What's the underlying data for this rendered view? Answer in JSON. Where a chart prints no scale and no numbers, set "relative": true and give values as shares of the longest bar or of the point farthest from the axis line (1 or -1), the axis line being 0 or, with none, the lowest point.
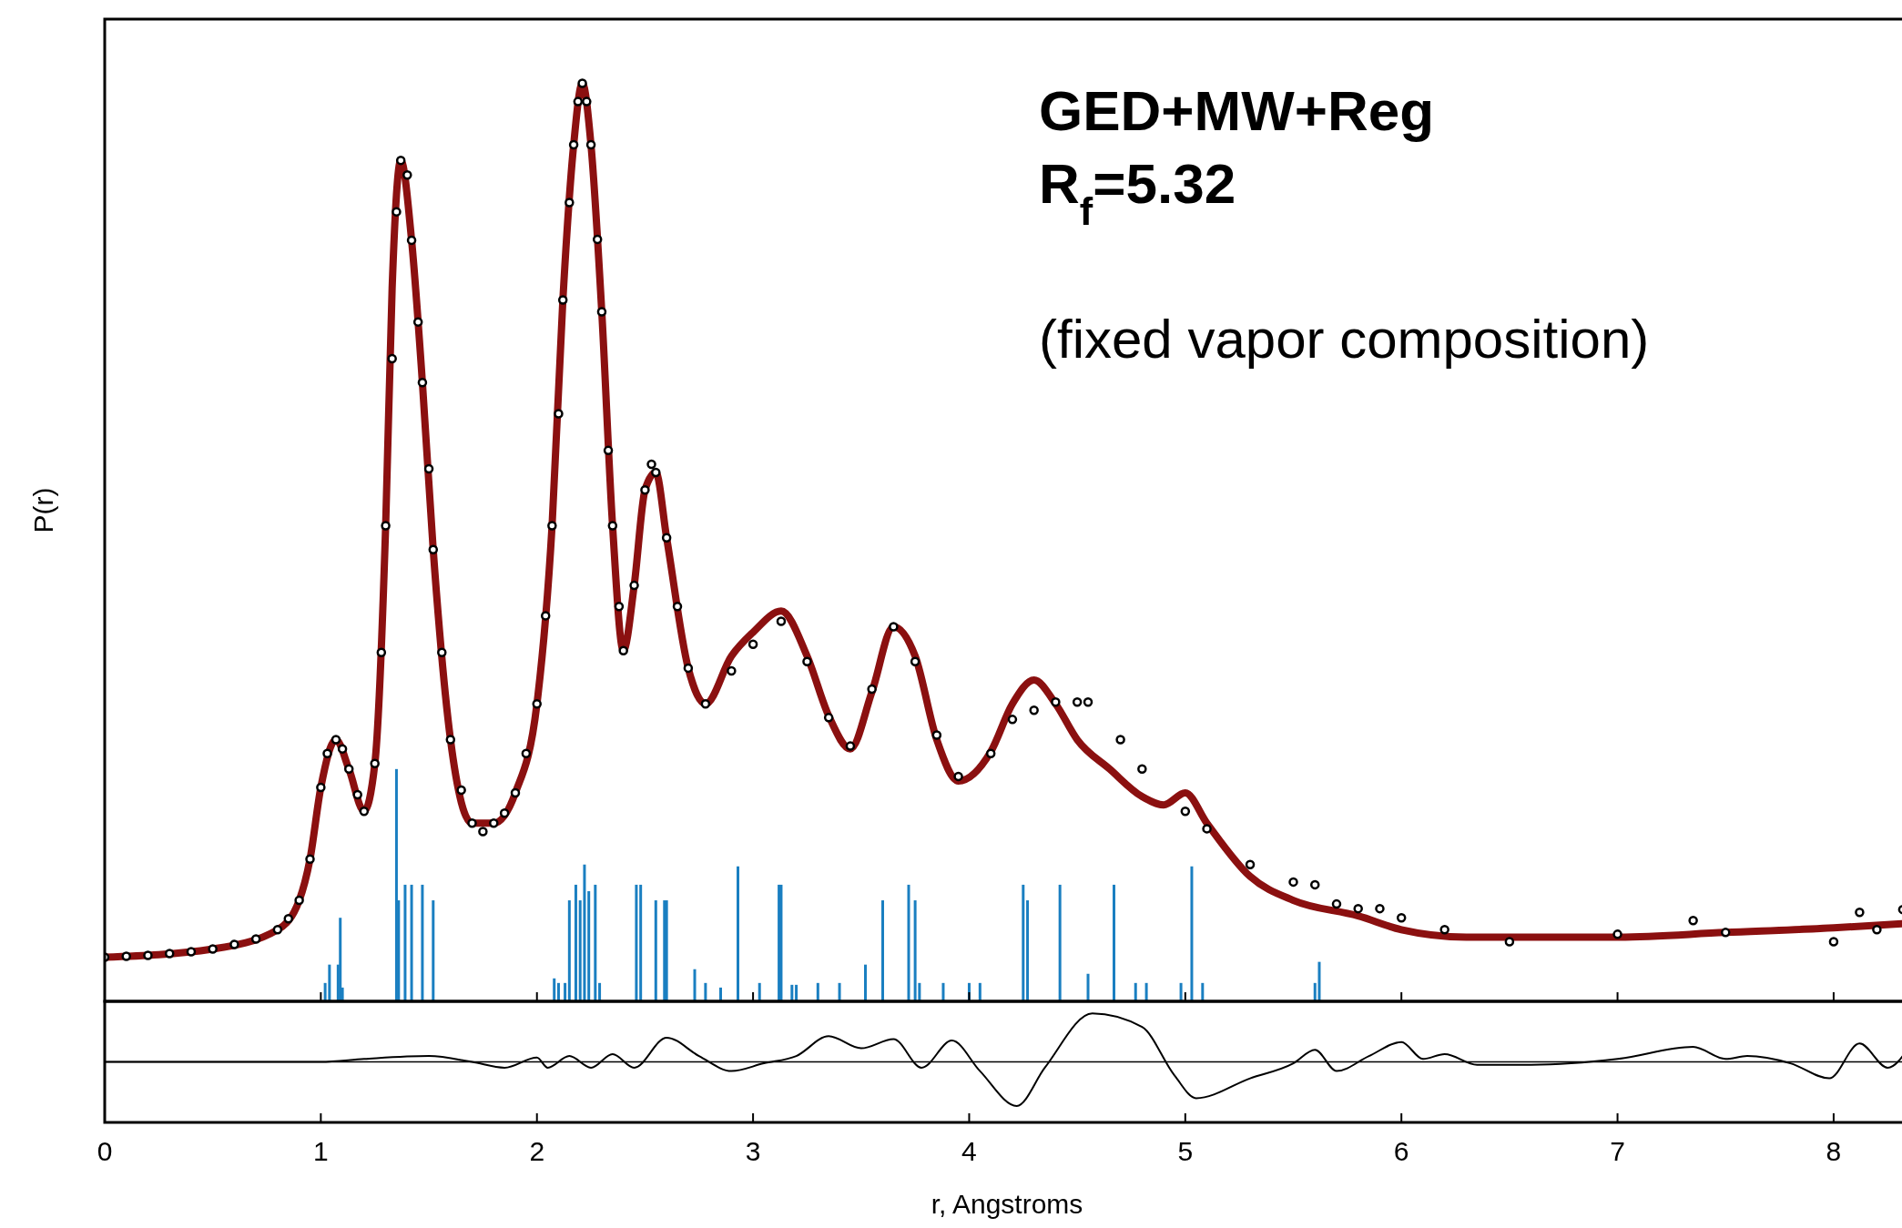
{
  "chart_data": [
    {
      "type": "line",
      "relative": true,
      "ylabel": "P(r)",
      "xlim": [
        0,
        8.35
      ],
      "xticks": [
        0,
        1,
        2,
        3,
        4,
        5,
        6,
        7,
        8
      ],
      "tick_labels": false,
      "annotations": [
        "GED+MW+Reg",
        "R$_{f}$=5.32",
        "(fixed vapor composition)"
      ],
      "series": [
        {
          "type": "bar",
          "color": "#1a7fc1",
          "x": [
            1.02,
            1.04,
            1.08,
            1.09,
            1.1,
            1.35,
            1.36,
            1.39,
            1.42,
            1.47,
            1.52,
            2.08,
            2.1,
            2.13,
            2.15,
            2.18,
            2.2,
            2.22,
            2.24,
            2.27,
            2.29,
            2.46,
            2.48,
            2.55,
            2.59,
            2.6,
            2.73,
            2.78,
            2.85,
            2.93,
            3.03,
            3.12,
            3.13,
            3.18,
            3.2,
            3.3,
            3.4,
            3.52,
            3.6,
            3.72,
            3.75,
            3.77,
            3.88,
            4.0,
            4.05,
            4.25,
            4.27,
            4.42,
            4.55,
            4.67,
            4.77,
            4.82,
            4.98,
            5.03,
            5.08,
            5.6,
            5.62
          ],
          "values": [
            0.02,
            0.04,
            0.04,
            0.091,
            0.015,
            0.253,
            0.11,
            0.127,
            0.127,
            0.127,
            0.11,
            0.025,
            0.02,
            0.02,
            0.11,
            0.127,
            0.11,
            0.149,
            0.12,
            0.127,
            0.02,
            0.127,
            0.127,
            0.11,
            0.11,
            0.11,
            0.035,
            0.02,
            0.015,
            0.147,
            0.02,
            0.127,
            0.127,
            0.018,
            0.018,
            0.02,
            0.02,
            0.04,
            0.11,
            0.127,
            0.11,
            0.02,
            0.02,
            0.02,
            0.02,
            0.127,
            0.11,
            0.127,
            0.03,
            0.127,
            0.02,
            0.02,
            0.02,
            0.147,
            0.02,
            0.02,
            0.043
          ]
        },
        {
          "color": "#8b1010",
          "x": [
            0,
            0.5,
            0.8,
            0.9,
            0.95,
            1.0,
            1.07,
            1.13,
            1.2,
            1.25,
            1.3,
            1.33,
            1.37,
            1.42,
            1.47,
            1.52,
            1.6,
            1.7,
            1.8,
            1.9,
            2.0,
            2.07,
            2.12,
            2.17,
            2.21,
            2.25,
            2.3,
            2.35,
            2.4,
            2.45,
            2.5,
            2.55,
            2.6,
            2.7,
            2.78,
            2.9,
            3.0,
            3.13,
            3.25,
            3.35,
            3.45,
            3.55,
            3.65,
            3.75,
            3.85,
            3.95,
            4.1,
            4.2,
            4.3,
            4.4,
            4.5,
            4.65,
            4.8,
            4.9,
            5.0,
            5.1,
            5.3,
            5.5,
            5.8,
            6.0,
            6.3,
            7.0,
            7.5,
            8.0,
            8.35
          ],
          "values": [
            0.048,
            0.057,
            0.078,
            0.11,
            0.155,
            0.233,
            0.285,
            0.253,
            0.207,
            0.259,
            0.518,
            0.777,
            0.916,
            0.829,
            0.674,
            0.492,
            0.285,
            0.194,
            0.194,
            0.227,
            0.324,
            0.518,
            0.764,
            0.933,
            1.0,
            0.933,
            0.751,
            0.518,
            0.382,
            0.453,
            0.557,
            0.576,
            0.505,
            0.363,
            0.324,
            0.376,
            0.402,
            0.425,
            0.376,
            0.311,
            0.275,
            0.337,
            0.408,
            0.376,
            0.285,
            0.24,
            0.272,
            0.324,
            0.35,
            0.324,
            0.285,
            0.253,
            0.223,
            0.214,
            0.227,
            0.194,
            0.136,
            0.11,
            0.093,
            0.078,
            0.07,
            0.07,
            0.075,
            0.08,
            0.085
          ]
        },
        {
          "type": "scatter",
          "color": "#000000",
          "marker": "circle",
          "x": [
            0,
            0.1,
            0.2,
            0.3,
            0.4,
            0.5,
            0.6,
            0.7,
            0.8,
            0.85,
            0.9,
            0.95,
            1.0,
            1.03,
            1.07,
            1.1,
            1.13,
            1.17,
            1.2,
            1.25,
            1.28,
            1.3,
            1.33,
            1.35,
            1.37,
            1.4,
            1.42,
            1.45,
            1.47,
            1.5,
            1.52,
            1.56,
            1.6,
            1.65,
            1.7,
            1.75,
            1.8,
            1.85,
            1.9,
            1.95,
            2.0,
            2.04,
            2.07,
            2.1,
            2.12,
            2.15,
            2.17,
            2.19,
            2.21,
            2.23,
            2.25,
            2.28,
            2.3,
            2.33,
            2.35,
            2.38,
            2.4,
            2.45,
            2.5,
            2.53,
            2.55,
            2.6,
            2.65,
            2.7,
            2.78,
            2.9,
            3.0,
            3.13,
            3.25,
            3.35,
            3.45,
            3.55,
            3.65,
            3.75,
            3.85,
            3.95,
            4.1,
            4.2,
            4.3,
            4.4,
            4.5,
            4.55,
            4.7,
            4.8,
            5.0,
            5.1,
            5.3,
            5.5,
            5.6,
            5.7,
            5.8,
            5.9,
            6.0,
            6.2,
            6.5,
            7.0,
            7.35,
            7.5,
            8.0,
            8.12,
            8.2,
            8.32
          ],
          "values": [
            0.048,
            0.049,
            0.05,
            0.052,
            0.054,
            0.057,
            0.062,
            0.068,
            0.078,
            0.09,
            0.11,
            0.155,
            0.233,
            0.27,
            0.285,
            0.275,
            0.253,
            0.225,
            0.207,
            0.259,
            0.38,
            0.518,
            0.7,
            0.86,
            0.916,
            0.9,
            0.829,
            0.74,
            0.674,
            0.58,
            0.492,
            0.38,
            0.285,
            0.23,
            0.194,
            0.185,
            0.194,
            0.205,
            0.227,
            0.27,
            0.324,
            0.42,
            0.518,
            0.64,
            0.764,
            0.87,
            0.933,
            0.98,
            1.0,
            0.98,
            0.933,
            0.83,
            0.751,
            0.6,
            0.518,
            0.43,
            0.382,
            0.453,
            0.557,
            0.585,
            0.576,
            0.505,
            0.43,
            0.363,
            0.324,
            0.36,
            0.389,
            0.414,
            0.37,
            0.309,
            0.278,
            0.34,
            0.408,
            0.37,
            0.29,
            0.245,
            0.27,
            0.307,
            0.317,
            0.326,
            0.326,
            0.326,
            0.285,
            0.253,
            0.207,
            0.188,
            0.149,
            0.13,
            0.127,
            0.106,
            0.101,
            0.101,
            0.091,
            0.078,
            0.065,
            0.073,
            0.088,
            0.075,
            0.065,
            0.097,
            0.078,
            0.1
          ]
        }
      ]
    },
    {
      "type": "line",
      "relative": true,
      "xlim": [
        0,
        8.35
      ],
      "xticks": [
        0,
        1,
        2,
        3,
        4,
        5,
        6,
        7,
        8
      ],
      "xlabel": "r, Angstroms",
      "series": [
        {
          "color": "#000000",
          "x": [
            0,
            1.0,
            1.2,
            1.5,
            1.7,
            1.85,
            2.0,
            2.05,
            2.15,
            2.25,
            2.35,
            2.45,
            2.6,
            2.75,
            2.9,
            3.05,
            3.2,
            3.35,
            3.5,
            3.65,
            3.78,
            3.92,
            4.05,
            4.22,
            4.35,
            4.57,
            4.8,
            4.95,
            5.05,
            5.3,
            5.5,
            5.6,
            5.7,
            5.85,
            6.0,
            6.1,
            6.2,
            6.35,
            6.6,
            7.0,
            7.35,
            7.5,
            7.6,
            7.8,
            7.98,
            8.12,
            8.25,
            8.35
          ],
          "values": [
            0,
            0,
            0.06,
            0.12,
            0,
            -0.12,
            0.09,
            -0.12,
            0.12,
            -0.12,
            0.16,
            -0.12,
            0.5,
            0.12,
            -0.19,
            -0.03,
            0.12,
            0.53,
            0.28,
            0.47,
            -0.12,
            0.44,
            -0.19,
            -0.91,
            -0.12,
            1.0,
            0.72,
            -0.28,
            -0.75,
            -0.34,
            -0.03,
            0.25,
            -0.19,
            0.12,
            0.41,
            0.06,
            0.16,
            -0.06,
            -0.06,
            0.06,
            0.31,
            0.06,
            0.12,
            -0.03,
            -0.34,
            0.38,
            -0.12,
            0.31
          ]
        }
      ]
    }
  ]
}
